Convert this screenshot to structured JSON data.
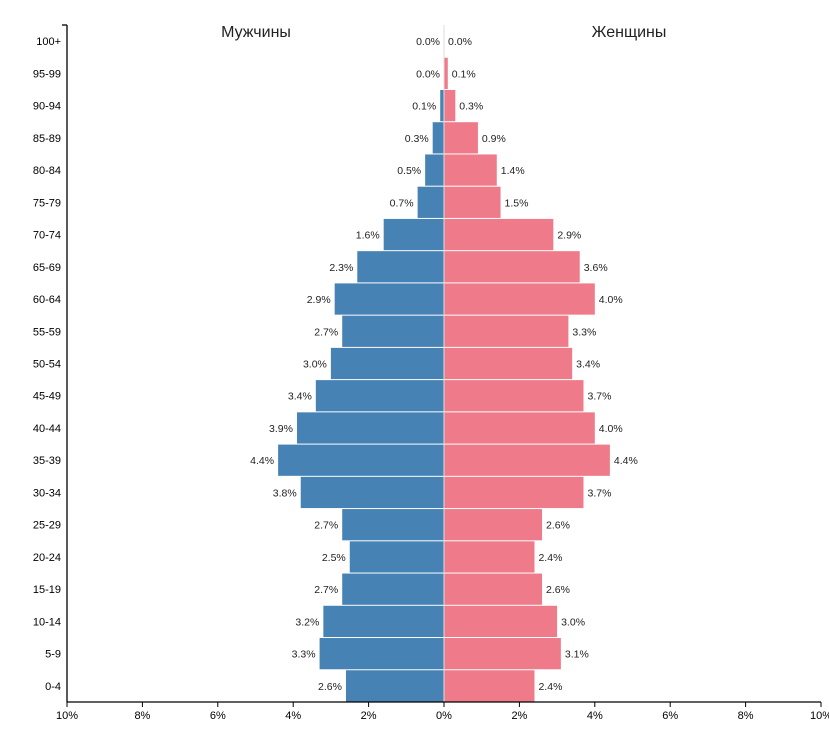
{
  "chart_data": {
    "type": "bar",
    "orientation": "horizontal-population-pyramid",
    "categories": [
      "100+",
      "95-99",
      "90-94",
      "85-89",
      "80-84",
      "75-79",
      "70-74",
      "65-69",
      "60-64",
      "55-59",
      "50-54",
      "45-49",
      "40-44",
      "35-39",
      "30-34",
      "25-29",
      "20-24",
      "15-19",
      "10-14",
      "5-9",
      "0-4"
    ],
    "series": [
      {
        "name": "Мужчины",
        "color": "#4682b4",
        "side": "left",
        "values": [
          0.0,
          0.0,
          0.1,
          0.3,
          0.5,
          0.7,
          1.6,
          2.3,
          2.9,
          2.7,
          3.0,
          3.4,
          3.9,
          4.4,
          3.8,
          2.7,
          2.5,
          2.7,
          3.2,
          3.3,
          2.6
        ]
      },
      {
        "name": "Женщины",
        "color": "#ef7a89",
        "side": "right",
        "values": [
          0.0,
          0.1,
          0.3,
          0.9,
          1.4,
          1.5,
          2.9,
          3.6,
          4.0,
          3.3,
          3.4,
          3.7,
          4.0,
          4.4,
          3.7,
          2.6,
          2.4,
          2.6,
          3.0,
          3.1,
          2.4
        ]
      }
    ],
    "xlim": [
      -10,
      10
    ],
    "x_ticks": [
      "10%",
      "8%",
      "6%",
      "4%",
      "2%",
      "0%",
      "2%",
      "4%",
      "6%",
      "8%",
      "10%"
    ],
    "value_suffix": "%",
    "grid": false,
    "legend": "titles above each side"
  }
}
